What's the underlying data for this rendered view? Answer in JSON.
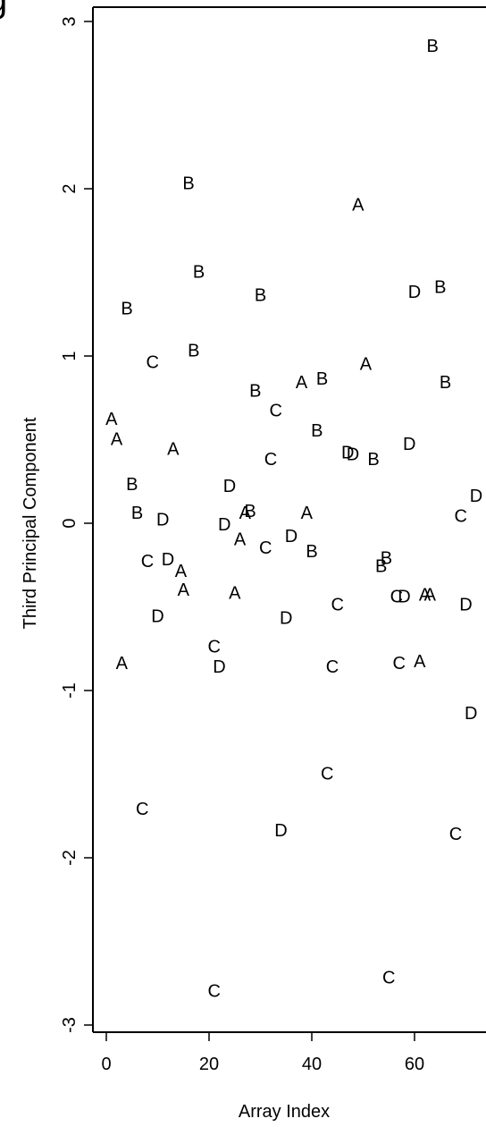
{
  "chart_data": {
    "type": "scatter",
    "title": "",
    "xlabel": "Array Index",
    "ylabel": "Third Principal Component",
    "xlim": [
      -1,
      73
    ],
    "ylim": [
      -3.05,
      3.05
    ],
    "x_ticks": [
      0,
      20,
      40,
      60
    ],
    "y_ticks": [
      -3,
      -2,
      -1,
      0,
      1,
      2,
      3
    ],
    "x_tick_labels": [
      "0",
      "20",
      "40",
      "60"
    ],
    "y_tick_labels": [
      "-3",
      "-2",
      "-1",
      "0",
      "1",
      "2",
      "3"
    ],
    "grid": false,
    "marker": "text-label",
    "points": [
      {
        "x": 63.5,
        "y": 2.85,
        "label": "B"
      },
      {
        "x": 16,
        "y": 2.03,
        "label": "B"
      },
      {
        "x": 49,
        "y": 1.9,
        "label": "A"
      },
      {
        "x": 18,
        "y": 1.5,
        "label": "B"
      },
      {
        "x": 30,
        "y": 1.36,
        "label": "B"
      },
      {
        "x": 60,
        "y": 1.38,
        "label": "D"
      },
      {
        "x": 65,
        "y": 1.41,
        "label": "B"
      },
      {
        "x": 4,
        "y": 1.28,
        "label": "B"
      },
      {
        "x": 17,
        "y": 1.03,
        "label": "B"
      },
      {
        "x": 9,
        "y": 0.96,
        "label": "C"
      },
      {
        "x": 50.5,
        "y": 0.95,
        "label": "A"
      },
      {
        "x": 38,
        "y": 0.84,
        "label": "A"
      },
      {
        "x": 42,
        "y": 0.86,
        "label": "B"
      },
      {
        "x": 29,
        "y": 0.79,
        "label": "B"
      },
      {
        "x": 66,
        "y": 0.84,
        "label": "B"
      },
      {
        "x": 33,
        "y": 0.67,
        "label": "C"
      },
      {
        "x": 1,
        "y": 0.62,
        "label": "A"
      },
      {
        "x": 2,
        "y": 0.5,
        "label": "A"
      },
      {
        "x": 41,
        "y": 0.55,
        "label": "B"
      },
      {
        "x": 13,
        "y": 0.44,
        "label": "A"
      },
      {
        "x": 47,
        "y": 0.42,
        "label": "D"
      },
      {
        "x": 48,
        "y": 0.41,
        "label": "D"
      },
      {
        "x": 52,
        "y": 0.38,
        "label": "B"
      },
      {
        "x": 59,
        "y": 0.47,
        "label": "D"
      },
      {
        "x": 32,
        "y": 0.38,
        "label": "C"
      },
      {
        "x": 5,
        "y": 0.23,
        "label": "B"
      },
      {
        "x": 24,
        "y": 0.22,
        "label": "D"
      },
      {
        "x": 72,
        "y": 0.16,
        "label": "D"
      },
      {
        "x": 6,
        "y": 0.06,
        "label": "B"
      },
      {
        "x": 11,
        "y": 0.02,
        "label": "D"
      },
      {
        "x": 27,
        "y": 0.06,
        "label": "A"
      },
      {
        "x": 28,
        "y": 0.07,
        "label": "B"
      },
      {
        "x": 39,
        "y": 0.06,
        "label": "A"
      },
      {
        "x": 69,
        "y": 0.04,
        "label": "C"
      },
      {
        "x": 23,
        "y": -0.01,
        "label": "D"
      },
      {
        "x": 26,
        "y": -0.1,
        "label": "A"
      },
      {
        "x": 36,
        "y": -0.08,
        "label": "D"
      },
      {
        "x": 31,
        "y": -0.15,
        "label": "C"
      },
      {
        "x": 40,
        "y": -0.17,
        "label": "B"
      },
      {
        "x": 54.5,
        "y": -0.21,
        "label": "B"
      },
      {
        "x": 8,
        "y": -0.23,
        "label": "C"
      },
      {
        "x": 12,
        "y": -0.22,
        "label": "D"
      },
      {
        "x": 53.5,
        "y": -0.26,
        "label": "B"
      },
      {
        "x": 14.5,
        "y": -0.29,
        "label": "A"
      },
      {
        "x": 15,
        "y": -0.4,
        "label": "A"
      },
      {
        "x": 25,
        "y": -0.42,
        "label": "A"
      },
      {
        "x": 56.5,
        "y": -0.44,
        "label": "C"
      },
      {
        "x": 58,
        "y": -0.44,
        "label": "D"
      },
      {
        "x": 62,
        "y": -0.43,
        "label": "A"
      },
      {
        "x": 63,
        "y": -0.43,
        "label": "A"
      },
      {
        "x": 45,
        "y": -0.49,
        "label": "C"
      },
      {
        "x": 70,
        "y": -0.49,
        "label": "D"
      },
      {
        "x": 10,
        "y": -0.56,
        "label": "D"
      },
      {
        "x": 35,
        "y": -0.57,
        "label": "D"
      },
      {
        "x": 21,
        "y": -0.74,
        "label": "C"
      },
      {
        "x": 3,
        "y": -0.84,
        "label": "A"
      },
      {
        "x": 22,
        "y": -0.86,
        "label": "D"
      },
      {
        "x": 44,
        "y": -0.86,
        "label": "C"
      },
      {
        "x": 57,
        "y": -0.84,
        "label": "C"
      },
      {
        "x": 61,
        "y": -0.83,
        "label": "A"
      },
      {
        "x": 71,
        "y": -1.14,
        "label": "D"
      },
      {
        "x": 43,
        "y": -1.5,
        "label": "C"
      },
      {
        "x": 7,
        "y": -1.71,
        "label": "C"
      },
      {
        "x": 34,
        "y": -1.84,
        "label": "D"
      },
      {
        "x": 68,
        "y": -1.86,
        "label": "C"
      },
      {
        "x": 55,
        "y": -2.72,
        "label": "C"
      },
      {
        "x": 21,
        "y": -2.8,
        "label": "C"
      }
    ]
  },
  "corner_glyph": "g"
}
